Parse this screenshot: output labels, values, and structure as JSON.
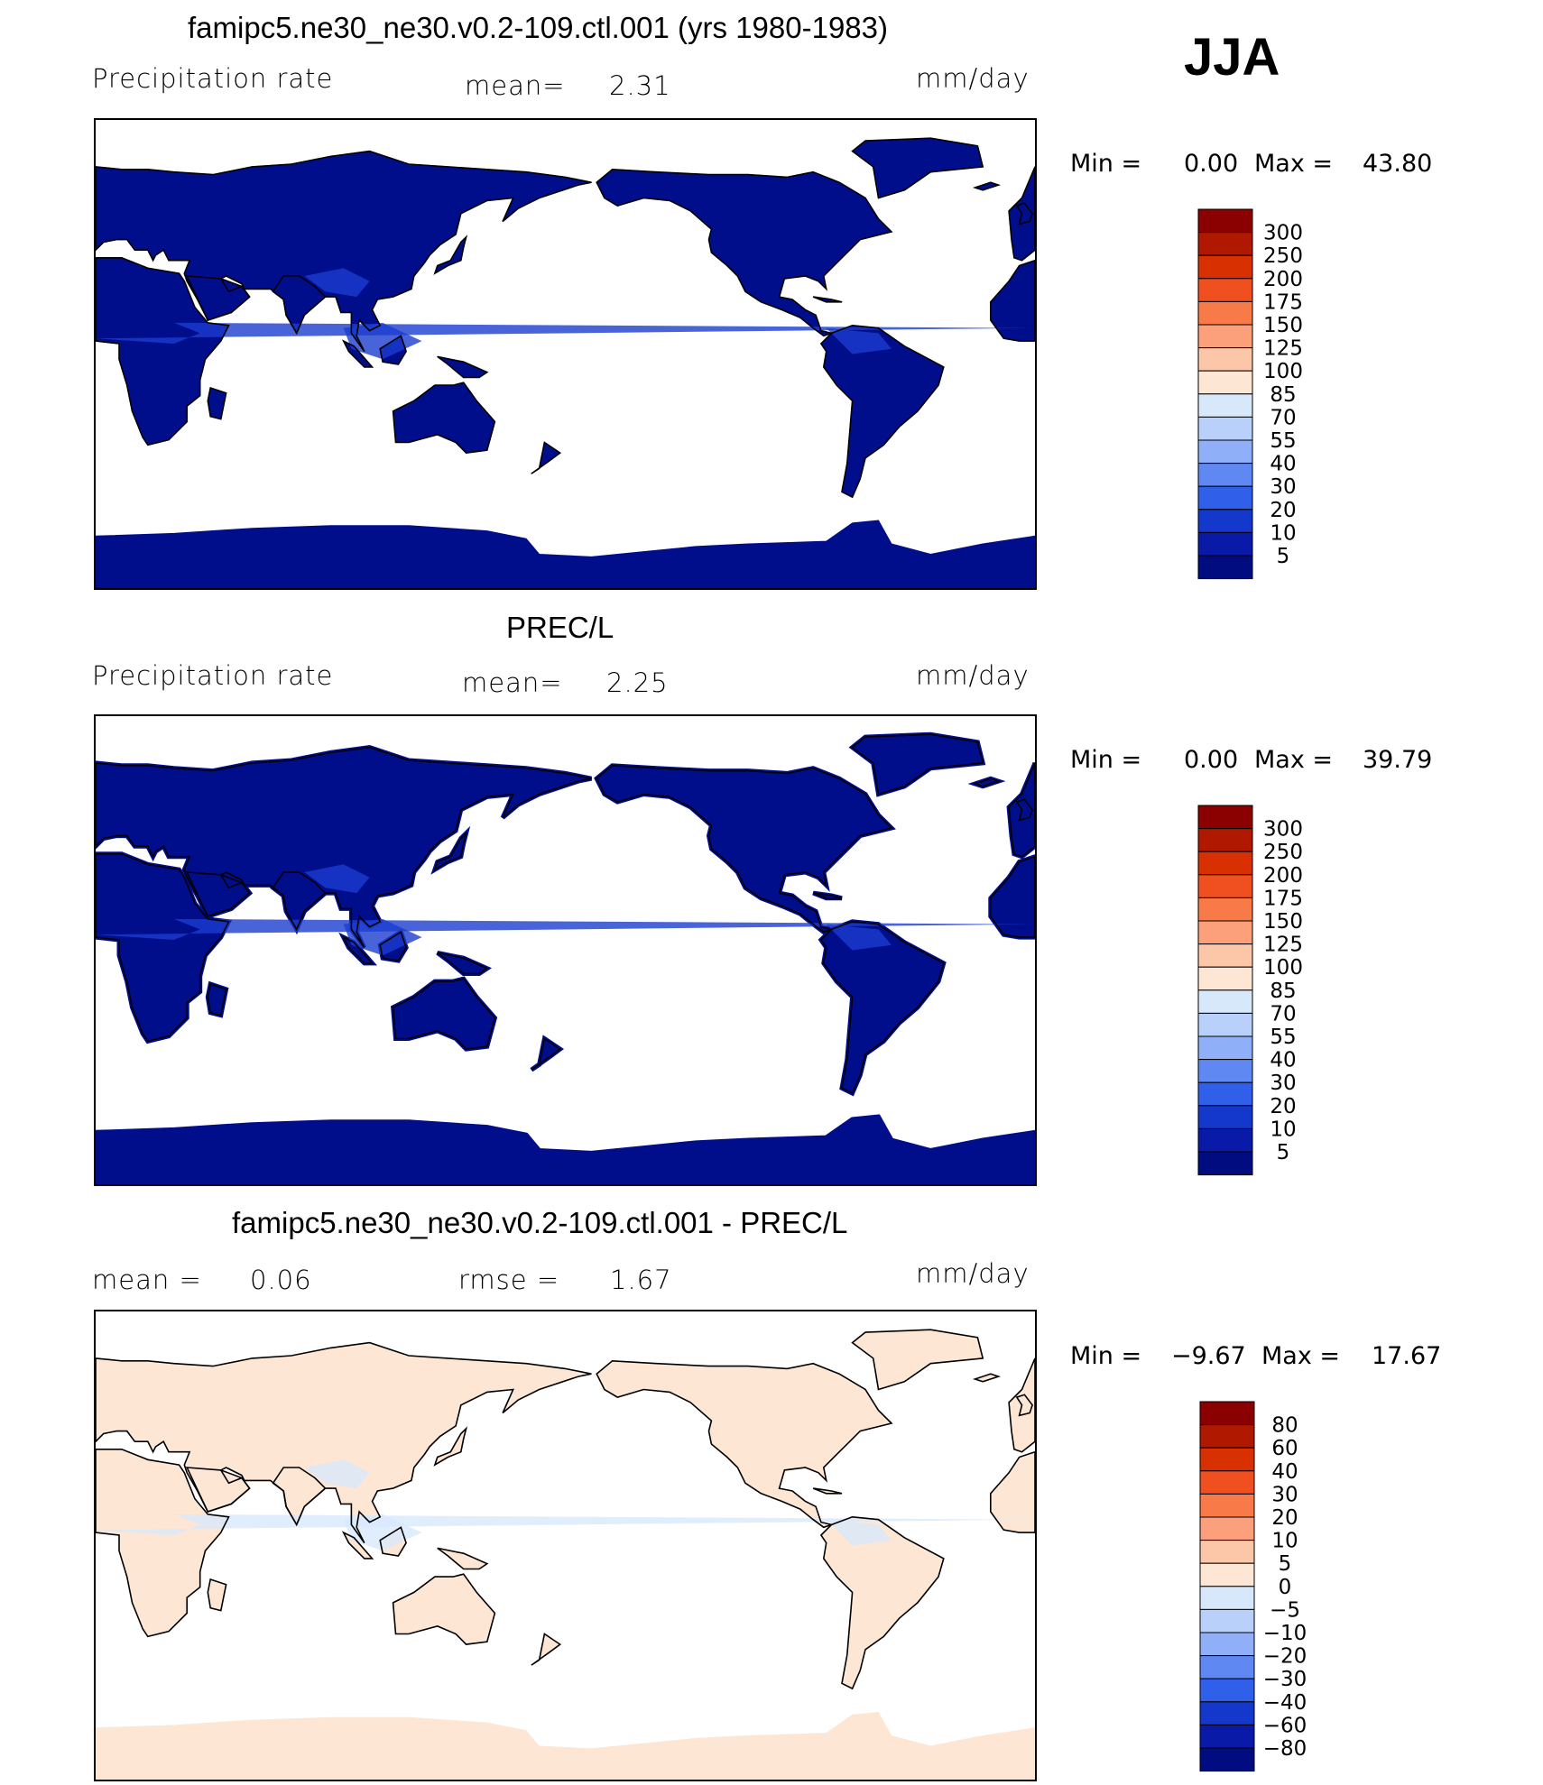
{
  "season": "JJA",
  "panels": [
    {
      "title": "famipc5.ne30_ne30.v0.2-109.ctl.001 (yrs 1980-1983)",
      "left_label": "Precipitation  rate",
      "mid_label": "mean=",
      "mid_value": "2.31",
      "units": "mm/day",
      "min_label": "Min  =",
      "min_value": "0.00",
      "max_label": "Max  =",
      "max_value": "43.80",
      "colorbar": {
        "levels": [
          "300",
          "250",
          "200",
          "175",
          "150",
          "125",
          "100",
          "85",
          "70",
          "55",
          "40",
          "30",
          "20",
          "10",
          "5"
        ],
        "colors": [
          "#8b0000",
          "#b01800",
          "#d83000",
          "#f05020",
          "#f87a48",
          "#fba07a",
          "#fcc6a8",
          "#fde6d4",
          "#d8e8fb",
          "#b8d0fa",
          "#8fb0f8",
          "#6088f2",
          "#3060ea",
          "#1438cc",
          "#0a1aa8",
          "#000c80"
        ]
      },
      "field_color": "#000e8c",
      "heavy_color": "#1c3cd0"
    },
    {
      "title": "PREC/L",
      "left_label": "Precipitation  rate",
      "mid_label": "mean=",
      "mid_value": "2.25",
      "units": "mm/day",
      "min_label": "Min  =",
      "min_value": "0.00",
      "max_label": "Max  =",
      "max_value": "39.79",
      "colorbar": {
        "levels": [
          "300",
          "250",
          "200",
          "175",
          "150",
          "125",
          "100",
          "85",
          "70",
          "55",
          "40",
          "30",
          "20",
          "10",
          "5"
        ],
        "colors": [
          "#8b0000",
          "#b01800",
          "#d83000",
          "#f05020",
          "#f87a48",
          "#fba07a",
          "#fcc6a8",
          "#fde6d4",
          "#d8e8fb",
          "#b8d0fa",
          "#8fb0f8",
          "#6088f2",
          "#3060ea",
          "#1438cc",
          "#0a1aa8",
          "#000c80"
        ]
      },
      "field_color": "#000e8c",
      "heavy_color": "#1c3cd0"
    },
    {
      "title": "famipc5.ne30_ne30.v0.2-109.ctl.001 - PREC/L",
      "left_label": "mean  =",
      "left_value": "0.06",
      "mid_label": "rmse  =",
      "mid_value": "1.67",
      "units": "mm/day",
      "min_label": "Min  =",
      "min_value": "−9.67",
      "max_label": "Max  =",
      "max_value": "17.67",
      "colorbar": {
        "levels": [
          "80",
          "60",
          "40",
          "30",
          "20",
          "10",
          "5",
          "0",
          "−5",
          "−10",
          "−20",
          "−30",
          "−40",
          "−60",
          "−80"
        ],
        "colors": [
          "#8b0000",
          "#b01800",
          "#d83000",
          "#f05020",
          "#f87a48",
          "#fba07a",
          "#fcc6a8",
          "#fde6d4",
          "#d8e8fb",
          "#b8d0fa",
          "#8fb0f8",
          "#6088f2",
          "#3060ea",
          "#1438cc",
          "#0a1aa8",
          "#000c80"
        ]
      },
      "field_color": "#fde6d4",
      "heavy_color": "#d8e8fb"
    }
  ],
  "chart_data": [
    {
      "type": "heatmap",
      "title": "famipc5.ne30_ne30.v0.2-109.ctl.001 (yrs 1980-1983)",
      "variable": "Precipitation  rate",
      "units": "mm/day",
      "mean": 2.31,
      "min": 0.0,
      "max": 43.8,
      "levels": [
        5,
        10,
        20,
        30,
        40,
        55,
        70,
        85,
        100,
        125,
        150,
        175,
        200,
        250,
        300
      ]
    },
    {
      "type": "heatmap",
      "title": "PREC/L",
      "variable": "Precipitation  rate",
      "units": "mm/day",
      "mean": 2.25,
      "min": 0.0,
      "max": 39.79,
      "levels": [
        5,
        10,
        20,
        30,
        40,
        55,
        70,
        85,
        100,
        125,
        150,
        175,
        200,
        250,
        300
      ]
    },
    {
      "type": "heatmap",
      "title": "famipc5.ne30_ne30.v0.2-109.ctl.001 - PREC/L",
      "units": "mm/day",
      "mean": 0.06,
      "rmse": 1.67,
      "min": -9.67,
      "max": 17.67,
      "levels": [
        -80,
        -60,
        -40,
        -30,
        -20,
        -10,
        -5,
        0,
        5,
        10,
        20,
        30,
        40,
        60,
        80
      ]
    }
  ]
}
